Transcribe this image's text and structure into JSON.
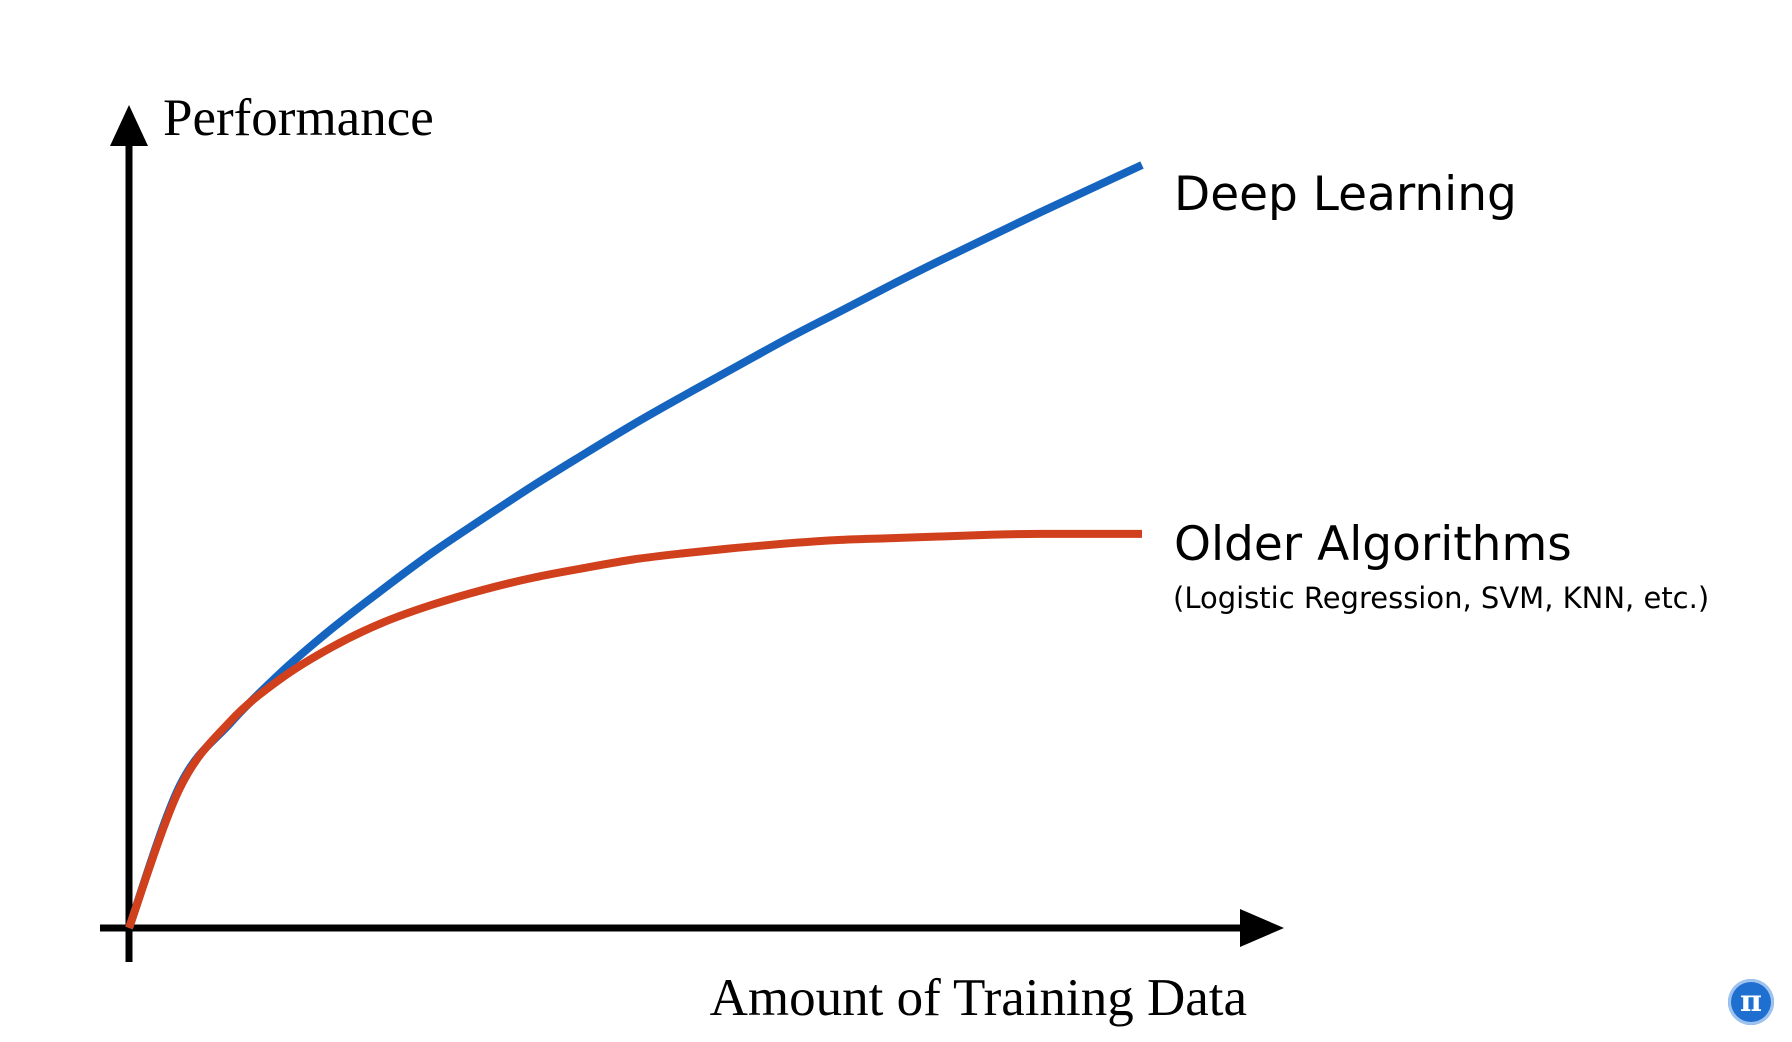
{
  "chart_data": {
    "type": "line",
    "title": "",
    "xlabel": "Amount of Training Data",
    "ylabel": "Performance",
    "axis_ticks": false,
    "grid": false,
    "x": [
      0,
      0.05,
      0.1,
      0.15,
      0.2,
      0.25,
      0.3,
      0.35,
      0.4,
      0.45,
      0.5,
      0.55,
      0.6,
      0.65,
      0.7,
      0.75,
      0.8,
      0.85,
      0.9,
      0.95,
      1.0
    ],
    "xlim": [
      0,
      1.15
    ],
    "ylim": [
      0,
      1.0
    ],
    "series": [
      {
        "name": "Deep Learning",
        "color": "#1464c0",
        "values": [
          0,
          0.163,
          0.235,
          0.293,
          0.343,
          0.388,
          0.431,
          0.47,
          0.508,
          0.544,
          0.579,
          0.612,
          0.644,
          0.676,
          0.706,
          0.736,
          0.765,
          0.793,
          0.821,
          0.848,
          0.875
        ]
      },
      {
        "name": "Older Algorithms",
        "color": "#d0401c",
        "values": [
          0,
          0.16,
          0.237,
          0.286,
          0.322,
          0.35,
          0.371,
          0.388,
          0.402,
          0.413,
          0.423,
          0.43,
          0.436,
          0.441,
          0.445,
          0.447,
          0.449,
          0.451,
          0.452,
          0.452,
          0.452
        ]
      }
    ],
    "annotations": [
      {
        "series": "Deep Learning",
        "text": "Deep Learning"
      },
      {
        "series": "Older Algorithms",
        "text": "Older Algorithms",
        "subtext": "(Logistic Regression, SVM, KNN, etc.)"
      }
    ]
  },
  "badge": {
    "icon": "pi-icon",
    "glyph": "π",
    "color": "#1f6fd1"
  }
}
